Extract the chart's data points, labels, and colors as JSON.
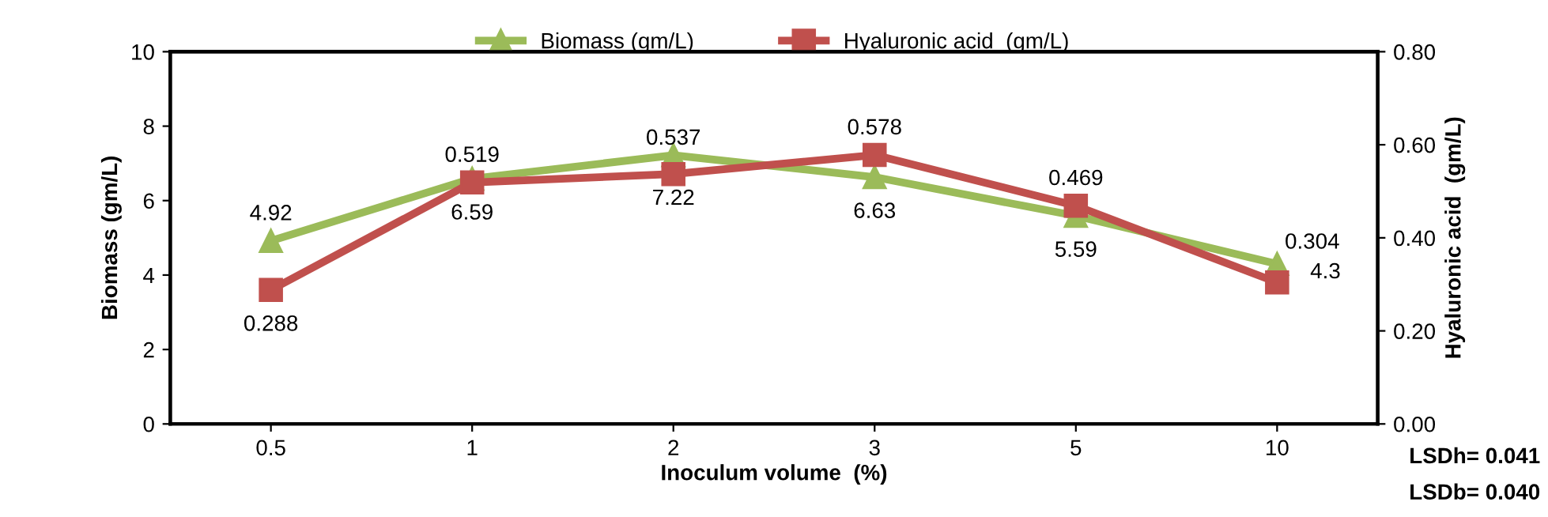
{
  "chart_data": {
    "type": "line",
    "categories": [
      "0.5",
      "1",
      "2",
      "3",
      "5",
      "10"
    ],
    "xlabel": "Inoculum volume  (%)",
    "ylabel": "Biomass (gm/L)",
    "y2label": "Hyaluronic acid  (gm/L)",
    "series": [
      {
        "name": "Biomass (gm/L)",
        "color": "#9bbb59",
        "marker": "triangle",
        "values": [
          4.92,
          6.59,
          7.22,
          6.63,
          5.59,
          4.3
        ]
      },
      {
        "name": "Hyaluronic acid  (gm/L)",
        "color": "#c0504d",
        "marker": "square",
        "axis": "y2",
        "values": [
          0.288,
          0.519,
          0.537,
          0.578,
          0.469,
          0.304
        ]
      }
    ],
    "ylim": [
      0,
      10
    ],
    "yticks": [
      0,
      2,
      4,
      6,
      8,
      10
    ],
    "y2lim": [
      0,
      0.8
    ],
    "y2ticks": [
      {
        "value": 0,
        "label": "0.00"
      },
      {
        "value": 0.2,
        "label": "0.20"
      },
      {
        "value": 0.4,
        "label": "0.40"
      },
      {
        "value": 0.6,
        "label": "0.60"
      },
      {
        "value": 0.8,
        "label": "0.80"
      }
    ],
    "data_labels": true,
    "legend": "top",
    "grid": false,
    "annotations": [
      "LSDh= 0.041",
      "LSDb= 0.040"
    ]
  }
}
